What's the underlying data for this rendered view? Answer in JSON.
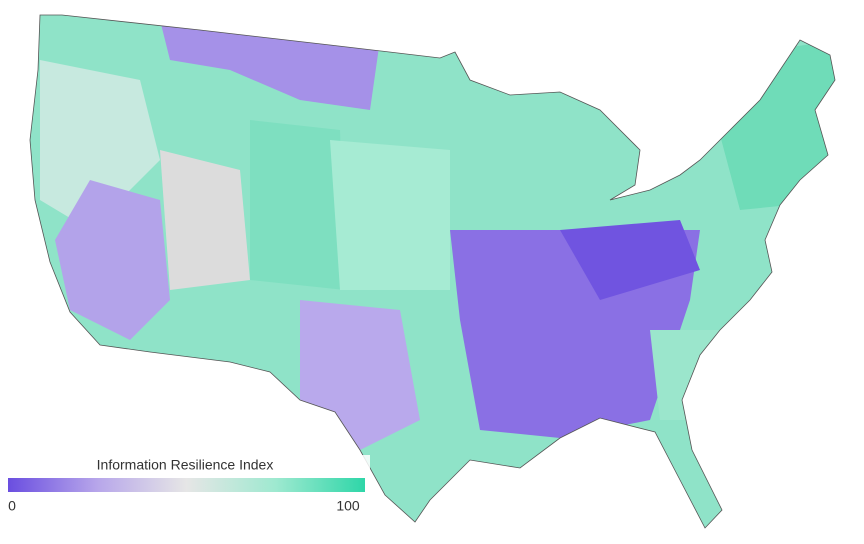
{
  "map": {
    "legend": {
      "title": "Information Resilience Index",
      "min": 0,
      "max": 100,
      "colors": [
        "#6a4ee0",
        "#b7a6ea",
        "#e6e6e6",
        "#9ee9d0",
        "#2ed6a8"
      ]
    }
  }
}
